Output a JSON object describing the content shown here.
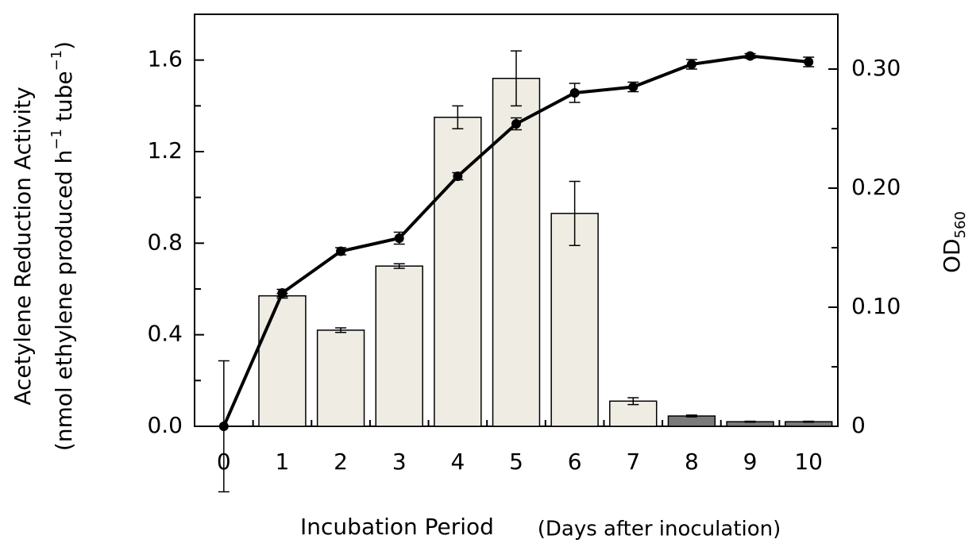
{
  "chart_data": {
    "type": "bar",
    "ylabel": "Acetylene Reduction Activity",
    "ylabel_units": [
      "(nmol ethylene produced h",
      "−1",
      " tube",
      "−1",
      ")"
    ],
    "y2label": [
      "OD",
      "560"
    ],
    "xlabel": "Incubation Period",
    "xlabel_note": "(Days after inoculation)",
    "categories": [
      "0",
      "1",
      "2",
      "3",
      "4",
      "5",
      "6",
      "7",
      "8",
      "9",
      "10"
    ],
    "ylim": [
      0,
      1.8
    ],
    "yticks": [
      {
        "value": 0,
        "label": "0.0"
      },
      0.4,
      0.8,
      1.2,
      1.6
    ],
    "yminor": [
      0.2,
      0.6,
      1.0,
      1.4
    ],
    "y2lim": [
      0,
      0.346
    ],
    "y2ticks": [
      0,
      {
        "value": 0.1,
        "label": "0.10"
      },
      {
        "value": 0.2,
        "label": "0.20"
      },
      {
        "value": 0.3,
        "label": "0.30"
      }
    ],
    "y2minor": [
      0.05,
      0.15,
      0.25
    ],
    "series": [
      {
        "type": "bar",
        "values": [
          0,
          0.57,
          0.42,
          0.7,
          1.35,
          1.52,
          0.93,
          0.11,
          0.045,
          0.02,
          0.02
        ],
        "errors": [
          0,
          0.01,
          0.01,
          0.01,
          0.05,
          0.12,
          0.14,
          0.015,
          0.004,
          0.002,
          0.002
        ],
        "colors": [
          "#efede3",
          "#efede3",
          "#efede3",
          "#efede3",
          "#efede3",
          "#efede3",
          "#efede3",
          "#efede3",
          "#7a7a7a",
          "#7a7a7a",
          "#7a7a7a"
        ]
      },
      {
        "type": "line",
        "axis": "y2",
        "color": "#000000",
        "values": [
          0,
          0.112,
          0.147,
          0.158,
          0.21,
          0.254,
          0.28,
          0.285,
          0.304,
          0.311,
          0.306
        ],
        "errors": [
          0.055,
          0.003,
          0.003,
          0.005,
          0.003,
          0.005,
          0.008,
          0.004,
          0.004,
          0.002,
          0.004
        ]
      }
    ]
  }
}
